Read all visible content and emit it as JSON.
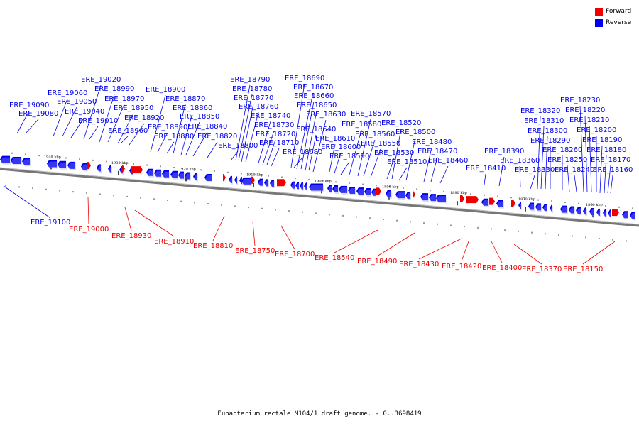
{
  "colors": {
    "forward": "#ee0000",
    "reverse": "#0000ee",
    "axis": "#777777"
  },
  "legend": [
    {
      "label": "Forward",
      "color": "#ee0000"
    },
    {
      "label": "Reverse",
      "color": "#0000ee"
    }
  ],
  "caption": "Eubacterium rectale M104/1 draft genome. - 0..3698419",
  "ticks": [
    "1940 kbp",
    "1930 kbp",
    "1920 kbp",
    "1910 kbp",
    "1900 kbp",
    "1890 kbp",
    "1880 kbp",
    "1870 kbp",
    "1860 kbp"
  ],
  "reverse_labels": [
    "ERE_19100",
    "ERE_19090",
    "ERE_19080",
    "ERE_19060",
    "ERE_19050",
    "ERE_19040",
    "ERE_19020",
    "ERE_19010",
    "ERE_18990",
    "ERE_18970",
    "ERE_18960",
    "ERE_18950",
    "ERE_18920",
    "ERE_18900",
    "ERE_18890",
    "ERE_18880",
    "ERE_18870",
    "ERE_18860",
    "ERE_18850",
    "ERE_18840",
    "ERE_18820",
    "ERE_18800",
    "ERE_18790",
    "ERE_18780",
    "ERE_18770",
    "ERE_18760",
    "ERE_18740",
    "ERE_18730",
    "ERE_18720",
    "ERE_18710",
    "ERE_18690",
    "ERE_18680",
    "ERE_18670",
    "ERE_18660",
    "ERE_18650",
    "ERE_18640",
    "ERE_18630",
    "ERE_18610",
    "ERE_18600",
    "ERE_18590",
    "ERE_18580",
    "ERE_18570",
    "ERE_18560",
    "ERE_18550",
    "ERE_18530",
    "ERE_18520",
    "ERE_18510",
    "ERE_18500",
    "ERE_18480",
    "ERE_18470",
    "ERE_18460",
    "ERE_18410",
    "ERE_18390",
    "ERE_18360",
    "ERE_18330",
    "ERE_18320",
    "ERE_18310",
    "ERE_18300",
    "ERE_18290",
    "ERE_18260",
    "ERE_18250",
    "ERE_18240",
    "ERE_18230",
    "ERE_18220",
    "ERE_18210",
    "ERE_18200",
    "ERE_18190",
    "ERE_18180",
    "ERE_18170",
    "ERE_18160"
  ],
  "forward_labels": [
    "ERE_19000",
    "ERE_18930",
    "ERE_18910",
    "ERE_18810",
    "ERE_18750",
    "ERE_18700",
    "ERE_18540",
    "ERE_18490",
    "ERE_18430",
    "ERE_18420",
    "ERE_18400",
    "ERE_18370",
    "ERE_18150"
  ]
}
